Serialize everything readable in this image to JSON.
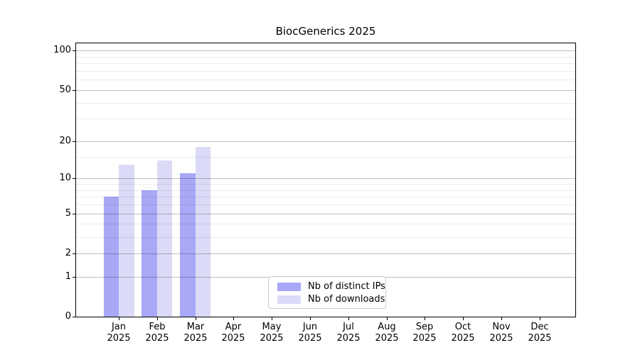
{
  "chart_data": {
    "type": "bar",
    "title": "BiocGenerics 2025",
    "categories": [
      "Jan",
      "Feb",
      "Mar",
      "Apr",
      "May",
      "Jun",
      "Jul",
      "Aug",
      "Sep",
      "Oct",
      "Nov",
      "Dec"
    ],
    "category_year": "2025",
    "series": [
      {
        "name": "Nb of distinct IPs",
        "color": "#a8a8f6",
        "values": [
          7,
          8,
          11,
          0,
          0,
          0,
          0,
          0,
          0,
          0,
          0,
          0
        ]
      },
      {
        "name": "Nb of downloads",
        "color": "#dbdbf7",
        "values": [
          13,
          14,
          18,
          0,
          0,
          0,
          0,
          0,
          0,
          0,
          0,
          0
        ]
      }
    ],
    "yscale": "log1p",
    "ytick_labels": [
      "0",
      "1",
      "2",
      "5",
      "10",
      "20",
      "50",
      "100"
    ],
    "yticks": [
      0,
      1,
      2,
      5,
      10,
      20,
      50,
      100
    ],
    "yminor_gridlines": [
      3,
      4,
      6,
      7,
      8,
      9,
      15,
      30,
      40,
      60,
      70,
      80,
      90
    ],
    "ylim": [
      0,
      115
    ],
    "grid": "horizontal",
    "legend_position": "inside-bottom-center"
  },
  "colors": {
    "bar_distinct_ips": "#a8a8f6",
    "bar_downloads": "#dbdbf7",
    "major_grid": "rgba(0,0,0,0.25)",
    "minor_grid": "rgba(0,0,0,0.08)",
    "spine": "#000000",
    "legend_border": "#cccccc"
  }
}
